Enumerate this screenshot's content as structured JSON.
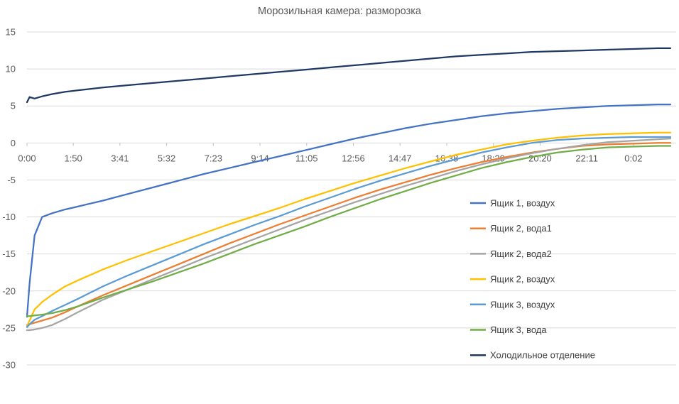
{
  "chart_data": {
    "type": "line",
    "title": "Морозильная камера: разморозка",
    "xlabel": "",
    "ylabel": "",
    "ylim": [
      -30,
      15
    ],
    "y_ticks": [
      15,
      10,
      5,
      0,
      -5,
      -10,
      -15,
      -20,
      -25,
      -30
    ],
    "x_tick_labels": [
      "0:00",
      "1:50",
      "3:41",
      "5:32",
      "7:23",
      "9:14",
      "11:05",
      "12:56",
      "14:47",
      "16:38",
      "18:29",
      "20:20",
      "22:11",
      "0:02"
    ],
    "x_tick_positions_hours": [
      0,
      1.833,
      3.683,
      5.533,
      7.383,
      9.233,
      11.083,
      12.933,
      14.783,
      16.633,
      18.483,
      20.333,
      22.183,
      24.033
    ],
    "x_range_hours": [
      0,
      25.5
    ],
    "grid": true,
    "legend_position": "right",
    "x": [
      0,
      0.1,
      0.3,
      0.6,
      1,
      1.5,
      2,
      3,
      4,
      5,
      6,
      7,
      8,
      9,
      10,
      11,
      12,
      13,
      14,
      15,
      16,
      17,
      18,
      19,
      20,
      21,
      22,
      23,
      24,
      25,
      25.5
    ],
    "series": [
      {
        "name": "Ящик 1, воздух",
        "color": "#4472C4",
        "values": [
          -23.5,
          -19,
          -12.5,
          -10,
          -9.5,
          -9,
          -8.6,
          -7.8,
          -6.9,
          -6.0,
          -5.1,
          -4.2,
          -3.4,
          -2.6,
          -1.8,
          -1.0,
          -0.2,
          0.6,
          1.3,
          2.0,
          2.6,
          3.1,
          3.6,
          4.0,
          4.3,
          4.6,
          4.8,
          5.0,
          5.1,
          5.2,
          5.2
        ]
      },
      {
        "name": "Ящик 2, вода1",
        "color": "#ED7D31",
        "values": [
          -24.6,
          -24.5,
          -24.3,
          -24.0,
          -23.6,
          -22.9,
          -22.1,
          -20.6,
          -19.2,
          -17.8,
          -16.4,
          -15.0,
          -13.6,
          -12.3,
          -11.0,
          -9.8,
          -8.6,
          -7.4,
          -6.3,
          -5.3,
          -4.3,
          -3.4,
          -2.6,
          -1.9,
          -1.3,
          -0.8,
          -0.4,
          -0.2,
          -0.1,
          0,
          0
        ]
      },
      {
        "name": "Ящик 2, вода2",
        "color": "#A5A5A5",
        "values": [
          -25.3,
          -25.3,
          -25.2,
          -25.0,
          -24.6,
          -23.8,
          -22.9,
          -21.2,
          -19.8,
          -18.4,
          -17.0,
          -15.6,
          -14.3,
          -13.0,
          -11.7,
          -10.4,
          -9.2,
          -8.0,
          -6.9,
          -5.8,
          -4.8,
          -3.8,
          -2.9,
          -2.1,
          -1.4,
          -0.8,
          -0.3,
          0.1,
          0.3,
          0.5,
          0.6
        ]
      },
      {
        "name": "Ящик 2, воздух",
        "color": "#FFC000",
        "values": [
          -24.8,
          -24,
          -22.5,
          -21.5,
          -20.5,
          -19.4,
          -18.6,
          -17.1,
          -15.8,
          -14.6,
          -13.4,
          -12.2,
          -11.0,
          -9.9,
          -8.8,
          -7.6,
          -6.5,
          -5.4,
          -4.4,
          -3.4,
          -2.5,
          -1.6,
          -0.9,
          -0.2,
          0.3,
          0.7,
          1.0,
          1.2,
          1.3,
          1.4,
          1.4
        ]
      },
      {
        "name": "Ящик 3, воздух",
        "color": "#5B9BD5",
        "values": [
          -24.9,
          -24.5,
          -23.9,
          -23.4,
          -22.7,
          -21.9,
          -21.1,
          -19.4,
          -17.9,
          -16.5,
          -15.1,
          -13.7,
          -12.4,
          -11.1,
          -9.9,
          -8.6,
          -7.4,
          -6.2,
          -5.1,
          -4.1,
          -3.1,
          -2.2,
          -1.3,
          -0.6,
          0,
          0.4,
          0.6,
          0.7,
          0.8,
          0.8,
          0.8
        ]
      },
      {
        "name": "Ящик 3, вода",
        "color": "#70AD47",
        "values": [
          -23.4,
          -23.4,
          -23.3,
          -23.2,
          -23.0,
          -22.6,
          -22.1,
          -20.9,
          -19.8,
          -18.7,
          -17.5,
          -16.3,
          -15.0,
          -13.7,
          -12.5,
          -11.3,
          -10.0,
          -8.8,
          -7.6,
          -6.5,
          -5.4,
          -4.4,
          -3.4,
          -2.6,
          -1.9,
          -1.3,
          -0.9,
          -0.6,
          -0.5,
          -0.4,
          -0.4
        ]
      },
      {
        "name": "Холодильное отделение",
        "color": "#203864",
        "values": [
          5.5,
          6.2,
          6.0,
          6.3,
          6.6,
          6.9,
          7.1,
          7.5,
          7.8,
          8.1,
          8.4,
          8.7,
          9.0,
          9.3,
          9.6,
          9.9,
          10.2,
          10.5,
          10.8,
          11.1,
          11.4,
          11.7,
          11.9,
          12.1,
          12.3,
          12.4,
          12.5,
          12.6,
          12.7,
          12.8,
          12.8
        ]
      }
    ]
  }
}
